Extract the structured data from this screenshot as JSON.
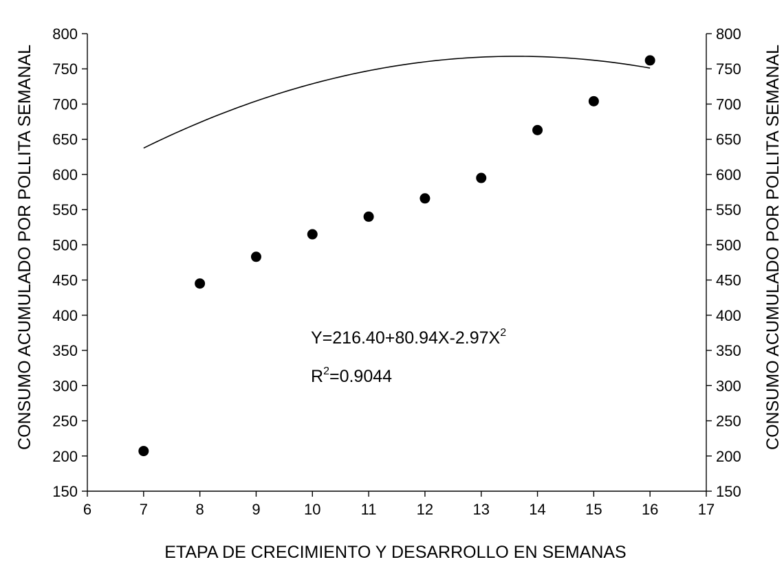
{
  "chart_data": {
    "type": "scatter",
    "xlabel": "ETAPA DE CRECIMIENTO Y DESARROLLO EN SEMANAS",
    "ylabel": "CONSUMO ACUMULADO POR POLLITA SEMANAL",
    "ylabel_right": "CONSUMO ACUMULADO POR POLLITA SEMANAL",
    "xlim": [
      6,
      17
    ],
    "ylim": [
      150,
      800
    ],
    "x_ticks": [
      6,
      7,
      8,
      9,
      10,
      11,
      12,
      13,
      14,
      15,
      16,
      17
    ],
    "y_ticks": [
      150,
      200,
      250,
      300,
      350,
      400,
      450,
      500,
      550,
      600,
      650,
      700,
      750,
      800
    ],
    "grid": false,
    "series": [
      {
        "x": [
          7,
          8,
          9,
          10,
          11,
          12,
          13,
          14,
          15,
          16
        ],
        "y": [
          207,
          445,
          483,
          515,
          540,
          566,
          595,
          663,
          704,
          762
        ]
      }
    ],
    "trendline": {
      "kind": "quadratic",
      "coefficients": [
        216.4,
        80.94,
        -2.97
      ],
      "x_range": [
        7,
        16
      ]
    },
    "annotations": {
      "equation_main": "Y=216.40+80.94X-2.97X",
      "equation_sup": "2",
      "r2_prefix": "R",
      "r2_sup": "2",
      "r2_value": "=0.9044"
    }
  }
}
